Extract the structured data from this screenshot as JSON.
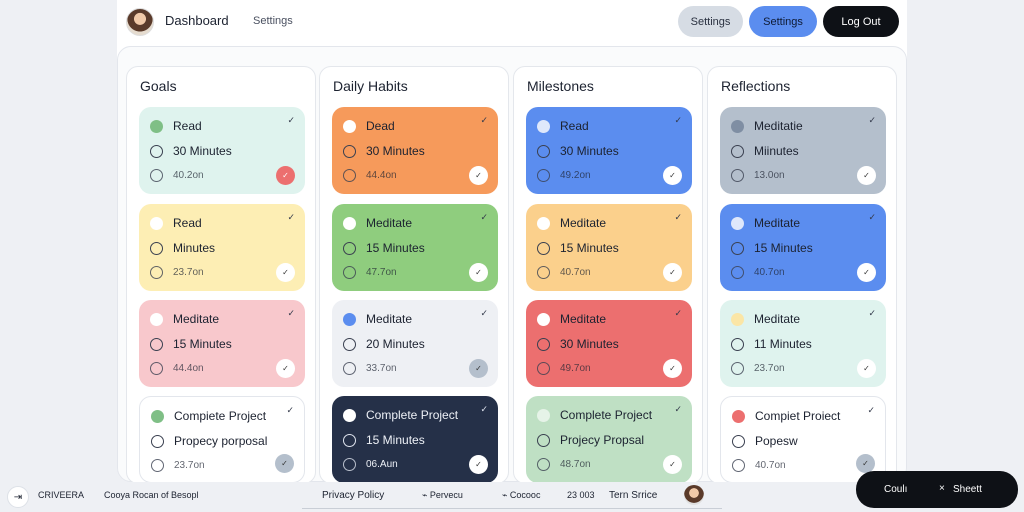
{
  "header": {
    "title": "Dashboard",
    "settings_link": "Settings",
    "btn_settings_grey": "Settings",
    "btn_settings_blue": "Settings",
    "btn_logout": "Log Out"
  },
  "columns": [
    {
      "title": "Goals",
      "cards": [
        {
          "l1": "Read",
          "l2": "30 Minutes",
          "l3": "40.2on"
        },
        {
          "l1": "Read",
          "l2": "Minutes",
          "l3": "23.7on"
        },
        {
          "l1": "Meditate",
          "l2": "15 Minutes",
          "l3": "44.4on"
        },
        {
          "l1": "Compiete Project",
          "l2": "Propecy porposal",
          "l3": "23.7on"
        }
      ]
    },
    {
      "title": "Daily Habits",
      "cards": [
        {
          "l1": "Dead",
          "l2": "30 Minutes",
          "l3": "44.4on"
        },
        {
          "l1": "Meditate",
          "l2": "15 Minutes",
          "l3": "47.7on"
        },
        {
          "l1": "Meditate",
          "l2": "20 Minutes",
          "l3": "33.7on"
        },
        {
          "l1": "Complete Project",
          "l2": "15 Minutes",
          "l3": "06.Aun"
        }
      ]
    },
    {
      "title": "Milestones",
      "cards": [
        {
          "l1": "Read",
          "l2": "30 Minutes",
          "l3": "49.2on"
        },
        {
          "l1": "Meditate",
          "l2": "15 Minutes",
          "l3": "40.7on"
        },
        {
          "l1": "Meditate",
          "l2": "30 Minutes",
          "l3": "49.7on"
        },
        {
          "l1": "Complete Project",
          "l2": "Projecy Propsal",
          "l3": "48.7on"
        }
      ]
    },
    {
      "title": "Reflections",
      "cards": [
        {
          "l1": "Meditatie",
          "l2": "Miinutes",
          "l3": "13.0on"
        },
        {
          "l1": "Meditate",
          "l2": "15 Minutes",
          "l3": "40.7on"
        },
        {
          "l1": "Meditate",
          "l2": "11 Minutes",
          "l3": "23.7on"
        },
        {
          "l1": "Compiet Proiect",
          "l2": "Popesw",
          "l3": "40.7on"
        }
      ]
    }
  ],
  "footer": {
    "brand": "CRIVEERA",
    "copyright": "Cooya Rocan of Besopl",
    "privacy": "Privacy Policy",
    "item2": "Pervecu",
    "item3": "Cocooc",
    "item4": "23 003",
    "terms": "Tern Srrice"
  },
  "toast": {
    "action_a": "Coulı",
    "action_b": "Sheett"
  },
  "icons": {
    "check": "check-icon",
    "logout": "exit-icon",
    "close": "close-icon"
  },
  "colors": {
    "accent_blue": "#5b8def",
    "dark": "#0e1116"
  }
}
